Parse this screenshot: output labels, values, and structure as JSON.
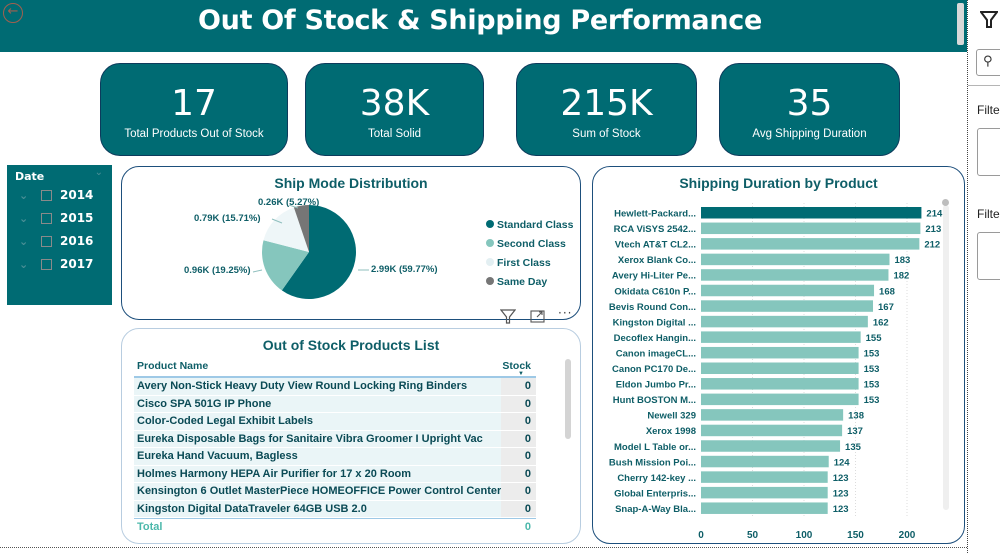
{
  "header": {
    "title": "Out Of Stock & Shipping Performance",
    "back_icon": "arrow-left-circle-icon"
  },
  "kpis": [
    {
      "value": "17",
      "label": "Total Products Out of Stock"
    },
    {
      "value": "38K",
      "label": "Total Solid"
    },
    {
      "value": "215K",
      "label": "Sum of Stock"
    },
    {
      "value": "35",
      "label": "Avg Shipping Duration"
    }
  ],
  "slicer": {
    "title": "Date",
    "items": [
      {
        "label": "2014",
        "checked": false
      },
      {
        "label": "2015",
        "checked": false
      },
      {
        "label": "2016",
        "checked": false
      },
      {
        "label": "2017",
        "checked": false
      }
    ]
  },
  "pie": {
    "title": "Ship Mode Distribution",
    "legend": [
      "Standard Class",
      "Second Class",
      "First Class",
      "Same Day"
    ],
    "colors": {
      "Standard Class": "#006B73",
      "Second Class": "#85C6BD",
      "First Class": "#EEF6F8",
      "Same Day": "#767676"
    }
  },
  "table": {
    "title": "Out of Stock Products List",
    "columns": [
      "Product Name",
      "Stock"
    ],
    "rows": [
      [
        "Avery Non-Stick Heavy Duty View Round Locking Ring Binders",
        "0"
      ],
      [
        "Cisco SPA 501G IP Phone",
        "0"
      ],
      [
        "Color-Coded Legal Exhibit Labels",
        "0"
      ],
      [
        "Eureka Disposable Bags for Sanitaire Vibra Groomer I Upright Vac",
        "0"
      ],
      [
        "Eureka Hand Vacuum, Bagless",
        "0"
      ],
      [
        "Holmes Harmony HEPA Air Purifier for 17 x 20 Room",
        "0"
      ],
      [
        "Kensington 6 Outlet MasterPiece HOMEOFFICE Power Control Center",
        "0"
      ],
      [
        "Kingston Digital DataTraveler 64GB USB 2.0",
        "0"
      ]
    ],
    "total_label": "Total",
    "total_value": "0"
  },
  "visual_tools": {
    "filter": "filter-icon",
    "focus": "focus-mode-icon",
    "more": "···"
  },
  "filter_pane": {
    "icon": "filter-icon",
    "search_icon": "search-icon",
    "labels": [
      "Filte",
      "Filte"
    ]
  },
  "chart_data": [
    {
      "type": "pie",
      "title": "Ship Mode Distribution",
      "categories": [
        "Standard Class",
        "Second Class",
        "First Class",
        "Same Day"
      ],
      "values": [
        2.99,
        0.96,
        0.79,
        0.26
      ],
      "unit": "K",
      "percentages": [
        59.77,
        19.25,
        15.71,
        5.27
      ],
      "data_labels": [
        "2.99K (59.77%)",
        "0.96K (19.25%)",
        "0.79K (15.71%)",
        "0.26K (5.27%)"
      ],
      "legend": "right"
    },
    {
      "type": "bar",
      "orientation": "horizontal",
      "title": "Shipping Duration by Product",
      "categories": [
        "Hewlett-Packard...",
        "RCA ViSYS 2542...",
        "Vtech AT&T CL2...",
        "Xerox Blank Co...",
        "Avery Hi-Liter Pe...",
        "Okidata C610n P...",
        "Bevis Round Con...",
        "Kingston Digital ...",
        "Decoflex Hangin...",
        "Canon imageCL...",
        "Canon PC170 De...",
        "Eldon Jumbo Pr...",
        "Hunt BOSTON M...",
        "Newell 329",
        "Xerox 1998",
        "Model L Table or...",
        "Bush Mission Poi...",
        "Cherry 142-key ...",
        "Global Enterpris...",
        "Snap-A-Way Bla..."
      ],
      "values": [
        214,
        213,
        212,
        183,
        182,
        168,
        167,
        162,
        155,
        153,
        153,
        153,
        153,
        138,
        137,
        135,
        124,
        123,
        123,
        123
      ],
      "xlim": [
        0,
        230
      ],
      "xticks": [
        0,
        50,
        100,
        150,
        200
      ],
      "grid": true,
      "highlight_color": "#006B73",
      "bar_color": "#85C6BD"
    }
  ]
}
